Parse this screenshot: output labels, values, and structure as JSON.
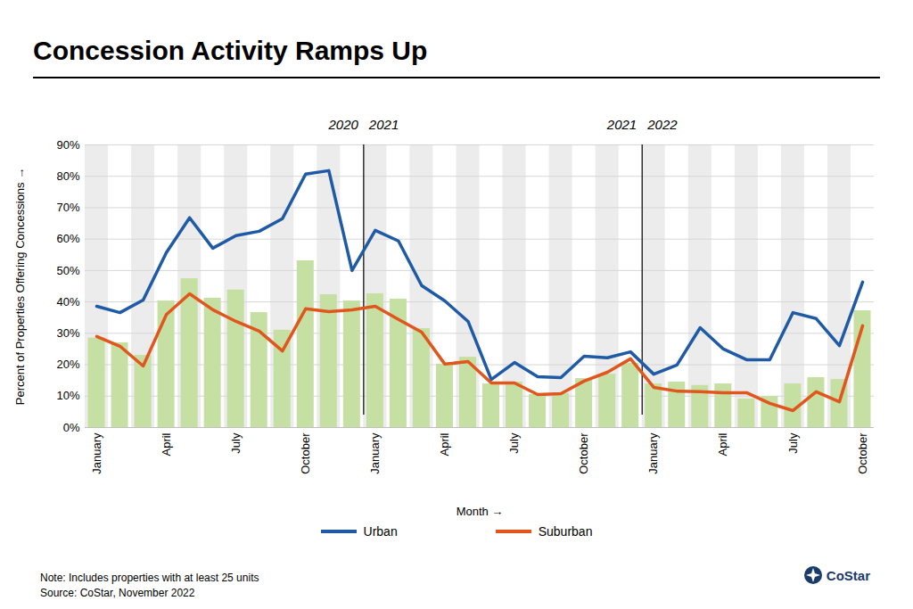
{
  "chart_data": {
    "type": "combo",
    "title": "Concession Activity Ramps Up",
    "x_label": "Month",
    "y_label": "Percent of Properties Offering Concessions",
    "categories": [
      "January",
      null,
      null,
      "April",
      null,
      null,
      "July",
      null,
      null,
      "October",
      null,
      null,
      "January",
      null,
      null,
      "April",
      null,
      null,
      "July",
      null,
      null,
      "October",
      null,
      null,
      "January",
      null,
      null,
      "April",
      null,
      null,
      "July",
      null,
      null,
      "October"
    ],
    "year_dividers": [
      [
        "2020",
        "2021"
      ],
      [
        "2021",
        "2022"
      ]
    ],
    "series": [
      {
        "type": "bar",
        "color": "#c6e0a4",
        "values": [
          28.5,
          27,
          23,
          40.3,
          47.4,
          41.2,
          43.8,
          36.6,
          31,
          53.1,
          42.3,
          40.3,
          42.6,
          40.9,
          31.5,
          20.2,
          22.4,
          13.9,
          14.5,
          10.5,
          10.8,
          15.6,
          17,
          20.5,
          13.9,
          14.5,
          13.4,
          13.9,
          9.1,
          9.9,
          13.9,
          15.9,
          15.3,
          37.2
        ]
      },
      {
        "name": "Urban",
        "type": "line",
        "color": "#1f5aa6",
        "values": [
          38.6,
          36.6,
          40.6,
          55.7,
          66.8,
          57.1,
          61.1,
          62.5,
          66.5,
          80.7,
          81.8,
          50,
          62.8,
          59.4,
          45.2,
          40.3,
          33.8,
          15.3,
          20.7,
          16.2,
          15.9,
          22.7,
          22.2,
          24.1,
          17,
          19.9,
          31.8,
          25,
          21.6,
          21.6,
          36.6,
          34.7,
          26.1,
          46.3
        ]
      },
      {
        "name": "Suburban",
        "type": "line",
        "color": "#e0561c",
        "values": [
          29,
          25.9,
          19.6,
          36,
          42.6,
          37.5,
          33.8,
          30.7,
          24.4,
          37.8,
          36.9,
          37.5,
          38.6,
          34.4,
          30.4,
          20.2,
          21,
          14.2,
          14.2,
          10.5,
          10.8,
          14.8,
          17.6,
          21.9,
          12.8,
          11.6,
          11.4,
          11.1,
          11.1,
          7.7,
          5.4,
          11.4,
          8.2,
          32.4
        ]
      }
    ],
    "ylim": [
      0,
      90
    ],
    "yticks": [
      {
        "value": 0,
        "label": "0%"
      },
      {
        "value": 10,
        "label": "10%"
      },
      {
        "value": 20,
        "label": "20%"
      },
      {
        "value": 30,
        "label": "30%"
      },
      {
        "value": 40,
        "label": "40%"
      },
      {
        "value": 50,
        "label": "50%"
      },
      {
        "value": 60,
        "label": "60%"
      },
      {
        "value": 70,
        "label": "70%"
      },
      {
        "value": 80,
        "label": "80%"
      },
      {
        "value": 90,
        "label": "90%"
      }
    ],
    "grid": true,
    "legend": "bottom",
    "notes": [
      "Note: Includes properties with at least 25 units",
      "Source: CoStar, November 2022"
    ],
    "logo": "CoStar"
  }
}
